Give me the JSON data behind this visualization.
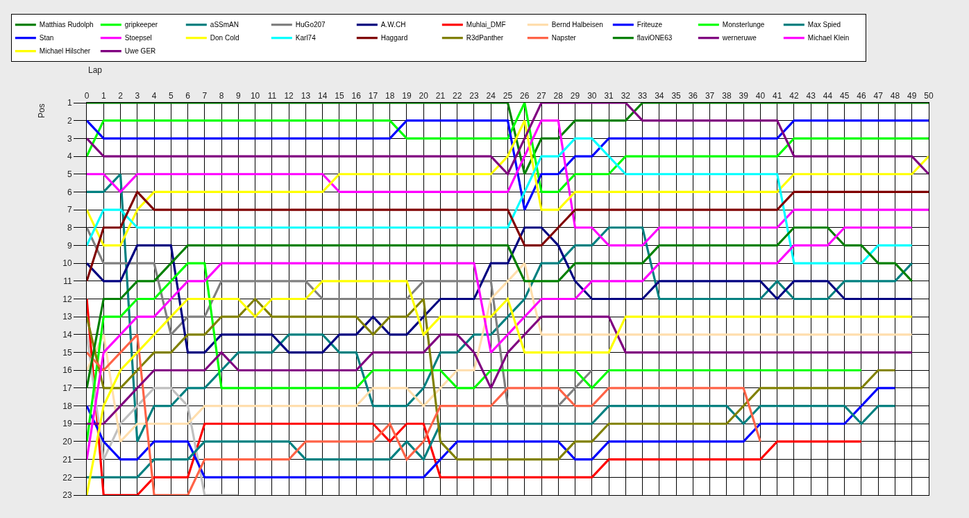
{
  "chart_data": {
    "type": "line",
    "xlabel": "Lap",
    "ylabel": "Pos",
    "x": [
      0,
      1,
      2,
      3,
      4,
      5,
      6,
      7,
      8,
      9,
      10,
      11,
      12,
      13,
      14,
      15,
      16,
      17,
      18,
      19,
      20,
      21,
      22,
      23,
      24,
      25,
      26,
      27,
      28,
      29,
      30,
      31,
      32,
      33,
      34,
      35,
      36,
      37,
      38,
      39,
      40,
      41,
      42,
      43,
      44,
      45,
      46,
      47,
      48,
      49,
      50
    ],
    "xlim": [
      0,
      50
    ],
    "xticks": [
      0,
      1,
      2,
      3,
      4,
      5,
      6,
      7,
      8,
      9,
      10,
      11,
      12,
      13,
      14,
      15,
      16,
      17,
      18,
      19,
      20,
      21,
      22,
      23,
      24,
      25,
      26,
      27,
      28,
      29,
      30,
      31,
      32,
      33,
      34,
      35,
      36,
      37,
      38,
      39,
      40,
      41,
      42,
      43,
      44,
      45,
      46,
      47,
      48,
      49,
      50
    ],
    "ylim": [
      23,
      1
    ],
    "yticks": [
      1,
      2,
      3,
      4,
      5,
      6,
      7,
      8,
      9,
      10,
      11,
      12,
      13,
      14,
      15,
      16,
      17,
      18,
      19,
      20,
      21,
      22,
      23
    ],
    "grid": true,
    "legend": "top",
    "marker": "none",
    "line_style": "solid",
    "series": [
      {
        "name": "Matthias Rudolph",
        "color": "#008000",
        "values": [
          1,
          1,
          1,
          1,
          1,
          1,
          1,
          1,
          1,
          1,
          1,
          1,
          1,
          1,
          1,
          1,
          1,
          1,
          1,
          1,
          1,
          1,
          1,
          1,
          1,
          1,
          5,
          3,
          3,
          2,
          2,
          2,
          2,
          1,
          1,
          1,
          1,
          1,
          1,
          1,
          1,
          1,
          1,
          1,
          1,
          1,
          1,
          1,
          1,
          1,
          1
        ]
      },
      {
        "name": "gripkeeper",
        "color": "#00ff00",
        "values": [
          4,
          2,
          2,
          2,
          2,
          2,
          2,
          2,
          2,
          2,
          2,
          2,
          2,
          2,
          2,
          2,
          2,
          2,
          2,
          3,
          3,
          3,
          3,
          3,
          3,
          3,
          1,
          6,
          6,
          5,
          5,
          5,
          4,
          4,
          4,
          4,
          4,
          4,
          4,
          4,
          4,
          4,
          3,
          3,
          3,
          3,
          3,
          3,
          3,
          3,
          3
        ]
      },
      {
        "name": "aSSmAN",
        "color": "#008080",
        "values": [
          6,
          6,
          5,
          20,
          18,
          18,
          17,
          17,
          16,
          15,
          15,
          15,
          14,
          14,
          14,
          15,
          15,
          18,
          18,
          18,
          17,
          15,
          15,
          14,
          14,
          13,
          12,
          10,
          10,
          9,
          9,
          8,
          8,
          8,
          12,
          12,
          12,
          12,
          12,
          12,
          12,
          11,
          12,
          12,
          12,
          11,
          11,
          11,
          11,
          10,
          null
        ]
      },
      {
        "name": "HuGo207",
        "color": "#808080",
        "values": [
          8,
          10,
          10,
          10,
          10,
          14,
          13,
          13,
          11,
          11,
          11,
          11,
          11,
          11,
          12,
          12,
          12,
          12,
          12,
          12,
          11,
          11,
          11,
          11,
          11,
          18,
          18,
          18,
          18,
          17,
          16,
          null,
          null,
          null,
          null,
          null,
          null,
          null,
          null,
          null,
          null,
          null,
          null,
          null,
          null,
          null,
          null,
          null,
          null,
          null,
          null
        ]
      },
      {
        "name": "A.W.CH",
        "color": "#000080",
        "values": [
          10,
          11,
          11,
          9,
          9,
          9,
          15,
          15,
          14,
          14,
          14,
          14,
          15,
          15,
          15,
          14,
          14,
          13,
          14,
          14,
          13,
          12,
          12,
          12,
          10,
          10,
          8,
          8,
          9,
          11,
          12,
          12,
          12,
          12,
          11,
          11,
          11,
          11,
          11,
          11,
          11,
          12,
          11,
          11,
          11,
          12,
          12,
          12,
          12,
          12,
          null
        ]
      },
      {
        "name": "Muhlai_DMF",
        "color": "#ff0000",
        "values": [
          12,
          23,
          23,
          23,
          22,
          22,
          22,
          19,
          19,
          19,
          19,
          19,
          19,
          19,
          19,
          19,
          19,
          19,
          20,
          19,
          19,
          22,
          22,
          22,
          22,
          22,
          22,
          22,
          22,
          22,
          22,
          21,
          21,
          21,
          21,
          21,
          21,
          21,
          21,
          21,
          21,
          20,
          20,
          20,
          20,
          20,
          20,
          null,
          null,
          null,
          null
        ]
      },
      {
        "color": "#c0c0c0",
        "values": [
          14,
          21,
          19,
          18,
          17,
          17,
          18,
          23,
          23,
          23,
          null,
          null,
          null,
          null,
          null,
          null,
          null,
          null,
          null,
          null,
          null,
          null,
          null,
          null,
          null,
          null,
          null,
          null,
          null,
          null,
          null,
          null,
          null,
          null,
          null,
          null,
          null,
          null,
          null,
          null,
          null,
          null,
          null,
          null,
          null,
          null,
          null,
          null,
          null,
          null,
          null
        ]
      },
      {
        "name": "Bernd Halbeisen",
        "color": "#ffdead",
        "values": [
          16,
          14,
          20,
          19,
          19,
          19,
          19,
          18,
          18,
          18,
          18,
          18,
          18,
          18,
          18,
          18,
          18,
          17,
          17,
          17,
          18,
          17,
          16,
          16,
          12,
          11,
          10,
          14,
          14,
          14,
          14,
          14,
          14,
          14,
          14,
          14,
          14,
          14,
          14,
          14,
          14,
          14,
          14,
          14,
          14,
          14,
          14,
          14,
          14,
          14,
          null
        ]
      },
      {
        "name": "Friteuze",
        "color": "#0000ff",
        "values": [
          18,
          20,
          21,
          21,
          20,
          20,
          20,
          22,
          22,
          22,
          22,
          22,
          22,
          22,
          22,
          22,
          22,
          22,
          22,
          22,
          22,
          21,
          20,
          20,
          20,
          20,
          20,
          20,
          20,
          21,
          21,
          20,
          20,
          20,
          20,
          20,
          20,
          20,
          20,
          20,
          19,
          19,
          19,
          19,
          19,
          19,
          18,
          17,
          17,
          null,
          null
        ]
      },
      {
        "name": "Monsterlunge",
        "color": "#00ff00",
        "values": [
          20,
          13,
          13,
          12,
          12,
          11,
          10,
          10,
          17,
          17,
          17,
          17,
          17,
          17,
          17,
          17,
          17,
          16,
          16,
          16,
          16,
          16,
          17,
          17,
          16,
          16,
          16,
          16,
          16,
          16,
          17,
          16,
          16,
          16,
          16,
          16,
          16,
          16,
          16,
          16,
          16,
          16,
          16,
          16,
          16,
          16,
          16,
          null,
          null,
          null,
          null
        ]
      },
      {
        "name": "Max Spied",
        "color": "#008080",
        "values": [
          22,
          22,
          22,
          22,
          21,
          21,
          21,
          20,
          20,
          20,
          20,
          20,
          20,
          21,
          21,
          21,
          21,
          21,
          21,
          20,
          21,
          19,
          19,
          19,
          19,
          19,
          19,
          19,
          19,
          19,
          19,
          18,
          18,
          18,
          18,
          18,
          18,
          18,
          18,
          19,
          18,
          18,
          18,
          18,
          18,
          18,
          19,
          18,
          18,
          null,
          null
        ]
      },
      {
        "name": "Stan",
        "color": "#0000ff",
        "values": [
          2,
          3,
          3,
          3,
          3,
          3,
          3,
          3,
          3,
          3,
          3,
          3,
          3,
          3,
          3,
          3,
          3,
          3,
          3,
          2,
          2,
          2,
          2,
          2,
          2,
          2,
          7,
          5,
          5,
          4,
          4,
          3,
          3,
          3,
          3,
          3,
          3,
          3,
          3,
          3,
          3,
          3,
          2,
          2,
          2,
          2,
          2,
          2,
          2,
          2,
          2
        ]
      },
      {
        "name": "Stoepsel",
        "color": "#ff00ff",
        "values": [
          5,
          5,
          6,
          5,
          5,
          5,
          5,
          5,
          5,
          5,
          5,
          5,
          5,
          5,
          5,
          6,
          6,
          6,
          6,
          6,
          6,
          6,
          6,
          6,
          6,
          6,
          4,
          2,
          2,
          8,
          8,
          9,
          9,
          9,
          8,
          8,
          8,
          8,
          8,
          8,
          8,
          8,
          7,
          7,
          7,
          7,
          7,
          7,
          7,
          7,
          7
        ]
      },
      {
        "name": "Don Cold",
        "color": "#ffff00",
        "values": [
          7,
          9,
          9,
          7,
          6,
          6,
          6,
          6,
          6,
          6,
          6,
          6,
          6,
          6,
          6,
          5,
          5,
          5,
          5,
          5,
          5,
          5,
          5,
          5,
          5,
          4,
          2,
          7,
          7,
          6,
          6,
          6,
          6,
          6,
          6,
          6,
          6,
          6,
          6,
          6,
          6,
          6,
          5,
          5,
          5,
          5,
          5,
          5,
          5,
          5,
          4
        ]
      },
      {
        "name": "Karl74",
        "color": "#00ffff",
        "values": [
          9,
          7,
          7,
          8,
          8,
          8,
          8,
          8,
          8,
          8,
          8,
          8,
          8,
          8,
          8,
          8,
          8,
          8,
          8,
          8,
          8,
          8,
          8,
          8,
          8,
          8,
          6,
          4,
          4,
          3,
          3,
          4,
          5,
          5,
          5,
          5,
          5,
          5,
          5,
          5,
          5,
          5,
          10,
          10,
          10,
          10,
          10,
          9,
          9,
          9,
          null
        ]
      },
      {
        "name": "Haggard",
        "color": "#800000",
        "values": [
          11,
          8,
          8,
          6,
          7,
          7,
          7,
          7,
          7,
          7,
          7,
          7,
          7,
          7,
          7,
          7,
          7,
          7,
          7,
          7,
          7,
          7,
          7,
          7,
          7,
          7,
          9,
          9,
          8,
          7,
          7,
          7,
          7,
          7,
          7,
          7,
          7,
          7,
          7,
          7,
          7,
          7,
          6,
          6,
          6,
          6,
          6,
          6,
          6,
          6,
          6
        ]
      },
      {
        "name": "R3dPanther",
        "color": "#808000",
        "values": [
          13,
          17,
          17,
          16,
          15,
          15,
          14,
          14,
          13,
          13,
          12,
          13,
          13,
          13,
          13,
          13,
          13,
          14,
          13,
          13,
          12,
          20,
          21,
          21,
          21,
          21,
          21,
          21,
          21,
          20,
          20,
          19,
          19,
          19,
          19,
          19,
          19,
          19,
          19,
          18,
          17,
          17,
          17,
          17,
          17,
          17,
          17,
          16,
          16,
          null,
          null
        ]
      },
      {
        "name": "Napster",
        "color": "#ff6347",
        "values": [
          15,
          16,
          15,
          14,
          23,
          23,
          23,
          21,
          21,
          21,
          21,
          21,
          21,
          20,
          20,
          20,
          20,
          20,
          19,
          21,
          20,
          18,
          18,
          18,
          18,
          17,
          17,
          17,
          17,
          18,
          18,
          17,
          17,
          17,
          17,
          17,
          17,
          17,
          17,
          17,
          20,
          null,
          null,
          null,
          null,
          null,
          null,
          null,
          null,
          null,
          null
        ]
      },
      {
        "name": "flaviONE63",
        "color": "#008000",
        "values": [
          17,
          12,
          12,
          11,
          11,
          10,
          9,
          9,
          9,
          9,
          9,
          9,
          9,
          9,
          9,
          9,
          9,
          9,
          9,
          9,
          9,
          9,
          9,
          9,
          9,
          9,
          11,
          11,
          11,
          10,
          10,
          10,
          10,
          10,
          9,
          9,
          9,
          9,
          9,
          9,
          9,
          9,
          8,
          8,
          8,
          9,
          9,
          10,
          10,
          11,
          null
        ]
      },
      {
        "name": "werneruwe",
        "color": "#800080",
        "values": [
          19,
          19,
          18,
          17,
          16,
          16,
          16,
          16,
          15,
          16,
          16,
          16,
          16,
          16,
          16,
          16,
          16,
          15,
          15,
          15,
          15,
          14,
          14,
          15,
          17,
          15,
          14,
          13,
          13,
          13,
          13,
          13,
          15,
          15,
          15,
          15,
          15,
          15,
          15,
          15,
          15,
          15,
          15,
          15,
          15,
          15,
          15,
          15,
          15,
          15,
          null
        ]
      },
      {
        "name": "Michael Klein",
        "color": "#ff00ff",
        "values": [
          21,
          15,
          14,
          13,
          13,
          12,
          11,
          11,
          10,
          10,
          10,
          10,
          10,
          10,
          10,
          10,
          10,
          10,
          10,
          10,
          10,
          10,
          10,
          10,
          15,
          14,
          13,
          12,
          12,
          12,
          11,
          11,
          11,
          11,
          10,
          10,
          10,
          10,
          10,
          10,
          10,
          10,
          9,
          9,
          9,
          8,
          8,
          8,
          8,
          8,
          null
        ]
      },
      {
        "name": "Michael Hilscher",
        "color": "#ffff00",
        "values": [
          23,
          18,
          16,
          15,
          14,
          13,
          12,
          12,
          12,
          12,
          13,
          12,
          12,
          12,
          11,
          11,
          11,
          11,
          11,
          11,
          14,
          13,
          13,
          13,
          13,
          12,
          15,
          15,
          15,
          15,
          15,
          15,
          13,
          13,
          13,
          13,
          13,
          13,
          13,
          13,
          13,
          13,
          13,
          13,
          13,
          13,
          13,
          13,
          13,
          13,
          null
        ]
      },
      {
        "name": "Uwe GER",
        "color": "#800080",
        "values": [
          3,
          4,
          4,
          4,
          4,
          4,
          4,
          4,
          4,
          4,
          4,
          4,
          4,
          4,
          4,
          4,
          4,
          4,
          4,
          4,
          4,
          4,
          4,
          4,
          4,
          5,
          3,
          1,
          1,
          1,
          1,
          1,
          1,
          2,
          2,
          2,
          2,
          2,
          2,
          2,
          2,
          2,
          4,
          4,
          4,
          4,
          4,
          4,
          4,
          4,
          5
        ]
      }
    ]
  }
}
